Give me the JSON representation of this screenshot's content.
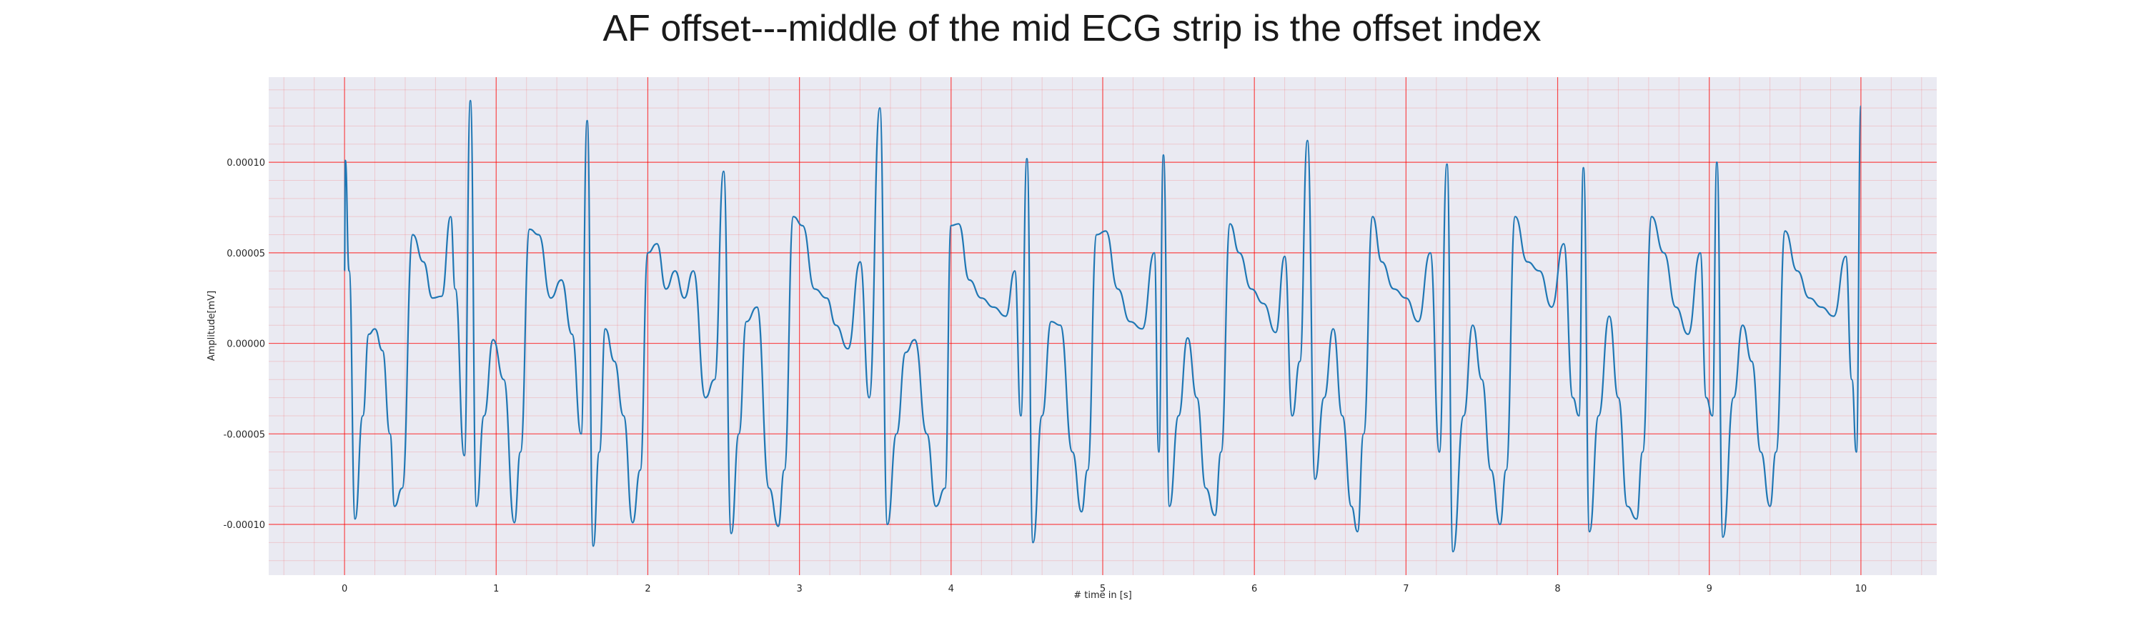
{
  "chart_data": {
    "type": "line",
    "title": "AF offset---middle of the mid ECG strip is the offset index",
    "xlabel": "# time in [s]",
    "ylabel": "Amplitude[mV]",
    "xlim": [
      -0.5,
      10.5
    ],
    "ylim": [
      -0.000128,
      0.000147
    ],
    "xticks": [
      0,
      1,
      2,
      3,
      4,
      5,
      6,
      7,
      8,
      9,
      10
    ],
    "xtick_labels": [
      "0",
      "1",
      "2",
      "3",
      "4",
      "5",
      "6",
      "7",
      "8",
      "9",
      "10"
    ],
    "yticks": [
      -0.0001,
      -5e-05,
      0.0,
      5e-05,
      0.0001
    ],
    "ytick_labels": [
      "-0.00010",
      "-0.00005",
      "0.00000",
      "0.00005",
      "0.00010"
    ],
    "grid": true,
    "grid_color": "#ff0000",
    "background_color": "#eaeaf2",
    "line_color": "#1f77b4",
    "beats_r_peak_times": [
      0.0,
      0.83,
      1.6,
      2.5,
      3.53,
      4.5,
      5.4,
      6.35,
      7.27,
      8.17,
      9.05,
      10.0
    ],
    "beats_r_peak_values": [
      0.000101,
      0.000134,
      0.000123,
      9.5e-05,
      0.00013,
      0.000102,
      0.000104,
      0.000112,
      9.9e-05,
      9.7e-05,
      0.0001,
      0.000131
    ],
    "beats_trough_values": [
      -9.8e-05,
      -9.7e-05,
      -0.000113,
      -0.000107,
      -0.000101,
      -0.000112,
      -9.5e-05,
      -0.000104,
      -0.000115,
      -0.000104,
      -0.000107,
      -9e-05
    ],
    "series": [
      {
        "values": [
          [
            0.0,
            4e-05
          ],
          [
            0.005,
            0.000101
          ],
          [
            0.03,
            4e-05
          ],
          [
            0.07,
            -9.7e-05
          ],
          [
            0.12,
            -4e-05
          ],
          [
            0.16,
            5e-06
          ],
          [
            0.2,
            8e-06
          ],
          [
            0.25,
            -4e-06
          ],
          [
            0.3,
            -5e-05
          ],
          [
            0.33,
            -9e-05
          ],
          [
            0.38,
            -8e-05
          ],
          [
            0.45,
            6e-05
          ],
          [
            0.52,
            4.5e-05
          ],
          [
            0.58,
            2.5e-05
          ],
          [
            0.64,
            2.6e-05
          ],
          [
            0.7,
            7e-05
          ],
          [
            0.73,
            3e-05
          ],
          [
            0.79,
            -6.2e-05
          ],
          [
            0.83,
            0.000134
          ],
          [
            0.87,
            -9e-05
          ],
          [
            0.92,
            -4e-05
          ],
          [
            0.98,
            2e-06
          ],
          [
            1.05,
            -2e-05
          ],
          [
            1.12,
            -9.9e-05
          ],
          [
            1.16,
            -6e-05
          ],
          [
            1.22,
            6.3e-05
          ],
          [
            1.28,
            6e-05
          ],
          [
            1.36,
            2.5e-05
          ],
          [
            1.43,
            3.5e-05
          ],
          [
            1.5,
            5e-06
          ],
          [
            1.56,
            -5e-05
          ],
          [
            1.6,
            0.000123
          ],
          [
            1.64,
            -0.000112
          ],
          [
            1.68,
            -6e-05
          ],
          [
            1.72,
            8e-06
          ],
          [
            1.78,
            -1e-05
          ],
          [
            1.84,
            -4e-05
          ],
          [
            1.9,
            -9.9e-05
          ],
          [
            1.95,
            -7e-05
          ],
          [
            2.0,
            5e-05
          ],
          [
            2.06,
            5.5e-05
          ],
          [
            2.12,
            3e-05
          ],
          [
            2.18,
            4e-05
          ],
          [
            2.24,
            2.5e-05
          ],
          [
            2.3,
            4e-05
          ],
          [
            2.38,
            -3e-05
          ],
          [
            2.44,
            -2e-05
          ],
          [
            2.5,
            9.5e-05
          ],
          [
            2.55,
            -0.000105
          ],
          [
            2.6,
            -5e-05
          ],
          [
            2.65,
            1.2e-05
          ],
          [
            2.72,
            2e-05
          ],
          [
            2.8,
            -8e-05
          ],
          [
            2.86,
            -0.000101
          ],
          [
            2.9,
            -7e-05
          ],
          [
            2.96,
            7e-05
          ],
          [
            3.02,
            6.5e-05
          ],
          [
            3.1,
            3e-05
          ],
          [
            3.18,
            2.5e-05
          ],
          [
            3.24,
            1e-05
          ],
          [
            3.32,
            -3e-06
          ],
          [
            3.4,
            4.5e-05
          ],
          [
            3.46,
            -3e-05
          ],
          [
            3.53,
            0.00013
          ],
          [
            3.58,
            -0.0001
          ],
          [
            3.64,
            -5e-05
          ],
          [
            3.7,
            -5e-06
          ],
          [
            3.76,
            2e-06
          ],
          [
            3.84,
            -5e-05
          ],
          [
            3.9,
            -9e-05
          ],
          [
            3.96,
            -8e-05
          ],
          [
            4.0,
            6.5e-05
          ],
          [
            4.05,
            6.6e-05
          ],
          [
            4.12,
            3.5e-05
          ],
          [
            4.2,
            2.5e-05
          ],
          [
            4.28,
            2e-05
          ],
          [
            4.36,
            1.5e-05
          ],
          [
            4.42,
            4e-05
          ],
          [
            4.46,
            -4e-05
          ],
          [
            4.5,
            0.000102
          ],
          [
            4.54,
            -0.00011
          ],
          [
            4.6,
            -4e-05
          ],
          [
            4.66,
            1.2e-05
          ],
          [
            4.72,
            1e-05
          ],
          [
            4.8,
            -6e-05
          ],
          [
            4.86,
            -9.3e-05
          ],
          [
            4.9,
            -7e-05
          ],
          [
            4.96,
            6e-05
          ],
          [
            5.02,
            6.2e-05
          ],
          [
            5.1,
            3e-05
          ],
          [
            5.18,
            1.2e-05
          ],
          [
            5.26,
            8e-06
          ],
          [
            5.34,
            5e-05
          ],
          [
            5.37,
            -6e-05
          ],
          [
            5.4,
            0.000104
          ],
          [
            5.44,
            -9e-05
          ],
          [
            5.5,
            -4e-05
          ],
          [
            5.56,
            3e-06
          ],
          [
            5.62,
            -3e-05
          ],
          [
            5.68,
            -8e-05
          ],
          [
            5.74,
            -9.5e-05
          ],
          [
            5.78,
            -6e-05
          ],
          [
            5.84,
            6.6e-05
          ],
          [
            5.9,
            5e-05
          ],
          [
            5.98,
            3e-05
          ],
          [
            6.06,
            2.2e-05
          ],
          [
            6.14,
            6e-06
          ],
          [
            6.2,
            4.8e-05
          ],
          [
            6.25,
            -4e-05
          ],
          [
            6.3,
            -1e-05
          ],
          [
            6.35,
            0.000112
          ],
          [
            6.4,
            -7.5e-05
          ],
          [
            6.46,
            -3e-05
          ],
          [
            6.52,
            8e-06
          ],
          [
            6.58,
            -4e-05
          ],
          [
            6.64,
            -9e-05
          ],
          [
            6.68,
            -0.000104
          ],
          [
            6.72,
            -5e-05
          ],
          [
            6.78,
            7e-05
          ],
          [
            6.84,
            4.5e-05
          ],
          [
            6.92,
            3e-05
          ],
          [
            7.0,
            2.5e-05
          ],
          [
            7.08,
            1.2e-05
          ],
          [
            7.16,
            5e-05
          ],
          [
            7.22,
            -6e-05
          ],
          [
            7.27,
            9.9e-05
          ],
          [
            7.31,
            -0.000115
          ],
          [
            7.38,
            -4e-05
          ],
          [
            7.44,
            1e-05
          ],
          [
            7.5,
            -2e-05
          ],
          [
            7.56,
            -7e-05
          ],
          [
            7.62,
            -0.0001
          ],
          [
            7.66,
            -7e-05
          ],
          [
            7.72,
            7e-05
          ],
          [
            7.8,
            4.5e-05
          ],
          [
            7.88,
            4e-05
          ],
          [
            7.96,
            2e-05
          ],
          [
            8.04,
            5.5e-05
          ],
          [
            8.1,
            -3e-05
          ],
          [
            8.14,
            -4e-05
          ],
          [
            8.17,
            9.7e-05
          ],
          [
            8.21,
            -0.000104
          ],
          [
            8.27,
            -4e-05
          ],
          [
            8.34,
            1.5e-05
          ],
          [
            8.4,
            -3e-05
          ],
          [
            8.46,
            -9e-05
          ],
          [
            8.52,
            -9.7e-05
          ],
          [
            8.56,
            -6e-05
          ],
          [
            8.62,
            7e-05
          ],
          [
            8.7,
            5e-05
          ],
          [
            8.78,
            2e-05
          ],
          [
            8.86,
            5e-06
          ],
          [
            8.94,
            5e-05
          ],
          [
            8.98,
            -3e-05
          ],
          [
            9.02,
            -4e-05
          ],
          [
            9.05,
            0.0001
          ],
          [
            9.09,
            -0.000107
          ],
          [
            9.16,
            -3e-05
          ],
          [
            9.22,
            1e-05
          ],
          [
            9.28,
            -1e-05
          ],
          [
            9.34,
            -6e-05
          ],
          [
            9.4,
            -9e-05
          ],
          [
            9.44,
            -6e-05
          ],
          [
            9.5,
            6.2e-05
          ],
          [
            9.58,
            4e-05
          ],
          [
            9.66,
            2.5e-05
          ],
          [
            9.74,
            2e-05
          ],
          [
            9.82,
            1.5e-05
          ],
          [
            9.9,
            4.8e-05
          ],
          [
            9.94,
            -2e-05
          ],
          [
            9.97,
            -6e-05
          ],
          [
            10.0,
            0.000131
          ]
        ]
      }
    ]
  }
}
